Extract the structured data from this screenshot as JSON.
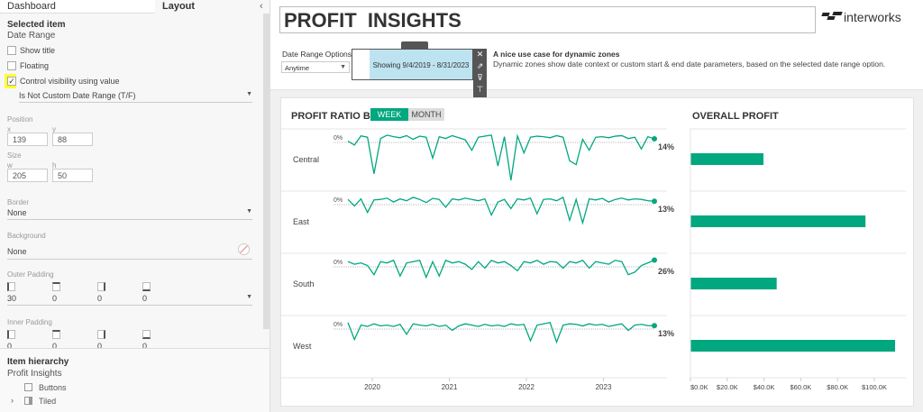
{
  "left_panel": {
    "tabs": [
      "Dashboard",
      "Layout"
    ],
    "selected_item_heading": "Selected item",
    "selected_item_name": "Date Range",
    "show_title": "Show title",
    "floating": "Floating",
    "control_visibility": "Control visibility using value",
    "control_visibility_checked": true,
    "visibility_field": "Is Not Custom Date Range (T/F)",
    "position_label": "Position",
    "x_label": "x",
    "x": "139",
    "y_label": "y",
    "y": "88",
    "size_label": "Size",
    "w_label": "w",
    "w": "205",
    "h_label": "h",
    "h": "50",
    "border_label": "Border",
    "border_value": "None",
    "background_label": "Background",
    "background_value": "None",
    "outer_padding_label": "Outer Padding",
    "outer_padding": [
      "30",
      "0",
      "0",
      "0"
    ],
    "inner_padding_label": "Inner Padding",
    "inner_padding": [
      "0",
      "0",
      "0",
      "0"
    ],
    "hierarchy_heading": "Item hierarchy",
    "hierarchy_root": "Profit Insights",
    "hierarchy_items": [
      "Buttons",
      "Tiled"
    ]
  },
  "dashboard": {
    "title": "PROFIT  INSIGHTS",
    "logo_text": "interworks",
    "date_range_label": "Date Range Options",
    "date_range_value": "Anytime",
    "showing_text": "Showing 9/4/2019 - 8/31/2023",
    "note_title": "A nice use case for dynamic zones",
    "note_body": "Dynamic zones show date context or custom start & end date parameters, based on the selected date range option.",
    "accent": "#00a77f",
    "zone_fill": "#bde3f0"
  },
  "chart_data": [
    {
      "type": "line",
      "title": "PROFIT RATIO BY",
      "toggle": [
        "WEEK",
        "MONTH"
      ],
      "toggle_selected": "WEEK",
      "granularity": "week",
      "x_start": "2019-09-04",
      "x_end": "2023-08-31",
      "x_ticks": [
        "2020",
        "2021",
        "2022",
        "2023"
      ],
      "zero_label": "0%",
      "series": [
        {
          "name": "Central",
          "end_label": "14%",
          "values": [
            5,
            -10,
            25,
            20,
            -120,
            15,
            28,
            22,
            18,
            26,
            12,
            24,
            20,
            -60,
            22,
            15,
            26,
            18,
            10,
            -30,
            20,
            24,
            28,
            -90,
            22,
            -145,
            25,
            -40,
            20,
            24,
            22,
            18,
            26,
            20,
            -70,
            -85,
            12,
            -30,
            20,
            22,
            18,
            24,
            26,
            15,
            20,
            -25,
            22,
            14
          ]
        },
        {
          "name": "East",
          "end_label": "13%",
          "values": [
            20,
            -5,
            22,
            -30,
            18,
            20,
            25,
            10,
            22,
            15,
            28,
            20,
            8,
            24,
            20,
            -10,
            22,
            18,
            25,
            20,
            15,
            22,
            -40,
            10,
            20,
            -15,
            22,
            18,
            25,
            -35,
            20,
            22,
            15,
            28,
            -60,
            20,
            -70,
            22,
            18,
            24,
            10,
            20,
            25,
            18,
            22,
            20,
            15,
            13
          ]
        },
        {
          "name": "South",
          "end_label": "26%",
          "values": [
            20,
            10,
            15,
            5,
            -30,
            20,
            15,
            25,
            -35,
            15,
            20,
            25,
            -40,
            20,
            -35,
            25,
            15,
            20,
            10,
            -10,
            20,
            -5,
            25,
            15,
            20,
            5,
            -15,
            20,
            15,
            25,
            10,
            20,
            18,
            -5,
            20,
            15,
            25,
            -5,
            20,
            15,
            10,
            25,
            20,
            -30,
            -20,
            5,
            15,
            26
          ]
        },
        {
          "name": "West",
          "end_label": "13%",
          "values": [
            25,
            -40,
            15,
            10,
            20,
            12,
            15,
            10,
            18,
            -20,
            20,
            15,
            12,
            18,
            10,
            15,
            -5,
            12,
            20,
            15,
            10,
            18,
            12,
            15,
            10,
            20,
            15,
            18,
            -45,
            15,
            20,
            25,
            -50,
            15,
            20,
            18,
            12,
            20,
            15,
            18,
            10,
            15,
            20,
            -5,
            15,
            18,
            13,
            13
          ]
        }
      ]
    },
    {
      "type": "bar",
      "title": "OVERALL PROFIT",
      "categories": [
        "Central",
        "East",
        "South",
        "West"
      ],
      "values": [
        39.7,
        95.2,
        46.9,
        111.3
      ],
      "unit": "$K",
      "xlim": [
        0,
        115
      ],
      "x_ticks": [
        "$0.0K",
        "$20.0K",
        "$40.0K",
        "$60.0K",
        "$80.0K",
        "$100.0K"
      ]
    }
  ]
}
